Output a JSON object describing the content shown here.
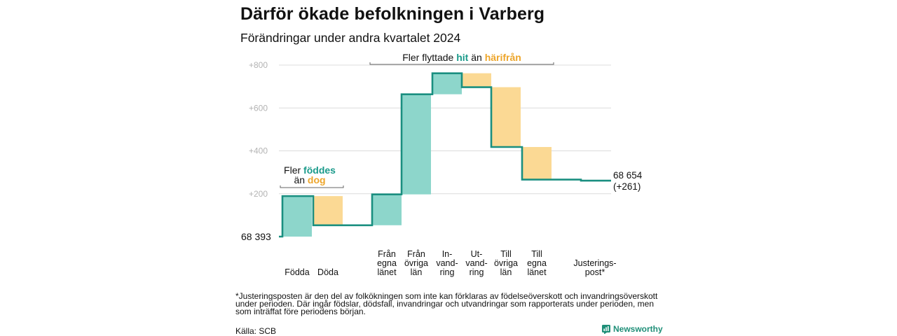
{
  "title": "Därför ökade befolkningen i Varberg",
  "subtitle": "Förändringar under andra kvartalet 2024",
  "chart_data": {
    "type": "waterfall",
    "start_label": "68  393",
    "end_label_line1": "68 654",
    "end_label_line2": "(+261)",
    "baseline": 0,
    "end_value": 261,
    "ylim": [
      0,
      800
    ],
    "yticks": [
      {
        "value": 200,
        "label": "+200"
      },
      {
        "value": 400,
        "label": "+400"
      },
      {
        "value": 600,
        "label": "+600"
      },
      {
        "value": 800,
        "label": "+800"
      }
    ],
    "grid": true,
    "steps": [
      {
        "label_lines": [
          "Födda"
        ],
        "from": 0,
        "to": 189,
        "kind": "increase"
      },
      {
        "label_lines": [
          "Döda"
        ],
        "from": 189,
        "to": 53,
        "kind": "decrease"
      },
      {
        "label_lines": [
          "Från",
          "egna",
          "länet"
        ],
        "from": 53,
        "to": 197,
        "kind": "increase"
      },
      {
        "label_lines": [
          "Från",
          "övriga",
          "län"
        ],
        "from": 197,
        "to": 664,
        "kind": "increase"
      },
      {
        "label_lines": [
          "In-",
          "vand-",
          "ring"
        ],
        "from": 664,
        "to": 762,
        "kind": "increase"
      },
      {
        "label_lines": [
          "Ut-",
          "vand-",
          "ring"
        ],
        "from": 762,
        "to": 697,
        "kind": "decrease"
      },
      {
        "label_lines": [
          "Till",
          "övriga",
          "län"
        ],
        "from": 697,
        "to": 418,
        "kind": "decrease"
      },
      {
        "label_lines": [
          "Till",
          "egna",
          "länet"
        ],
        "from": 418,
        "to": 266,
        "kind": "decrease"
      },
      {
        "label_lines": [
          "Justerings-",
          "post*"
        ],
        "from": 266,
        "to": 261,
        "kind": "decrease"
      }
    ],
    "annotations": {
      "births": {
        "pre": "Fler ",
        "highlight1": "föddes",
        "mid": "än ",
        "highlight2": "dog"
      },
      "migration": {
        "pre": "Fler flyttade ",
        "highlight1": "hit",
        "mid": " än ",
        "highlight2": "härifrån"
      }
    },
    "colors": {
      "increase": "#8dd6cb",
      "decrease": "#fbd994",
      "line": "#1a8f80",
      "highlight_increase": "#1a9a8a",
      "highlight_decrease": "#eda52a",
      "grid": "#dcdcdc",
      "tick": "#b3b3b3"
    }
  },
  "footnote": "*Justeringsposten är den del av folkökningen som inte kan förklaras av födelseöverskott och invandringsöverskott under perioden. Där ingår födslar, dödsfall, invandringar och utvandringar som rapporterats under perioden, men som inträffat före periodens början.",
  "source": "Källa: SCB",
  "brand": {
    "name": "Newsworthy",
    "icon": "newsworthy-logo-icon"
  }
}
